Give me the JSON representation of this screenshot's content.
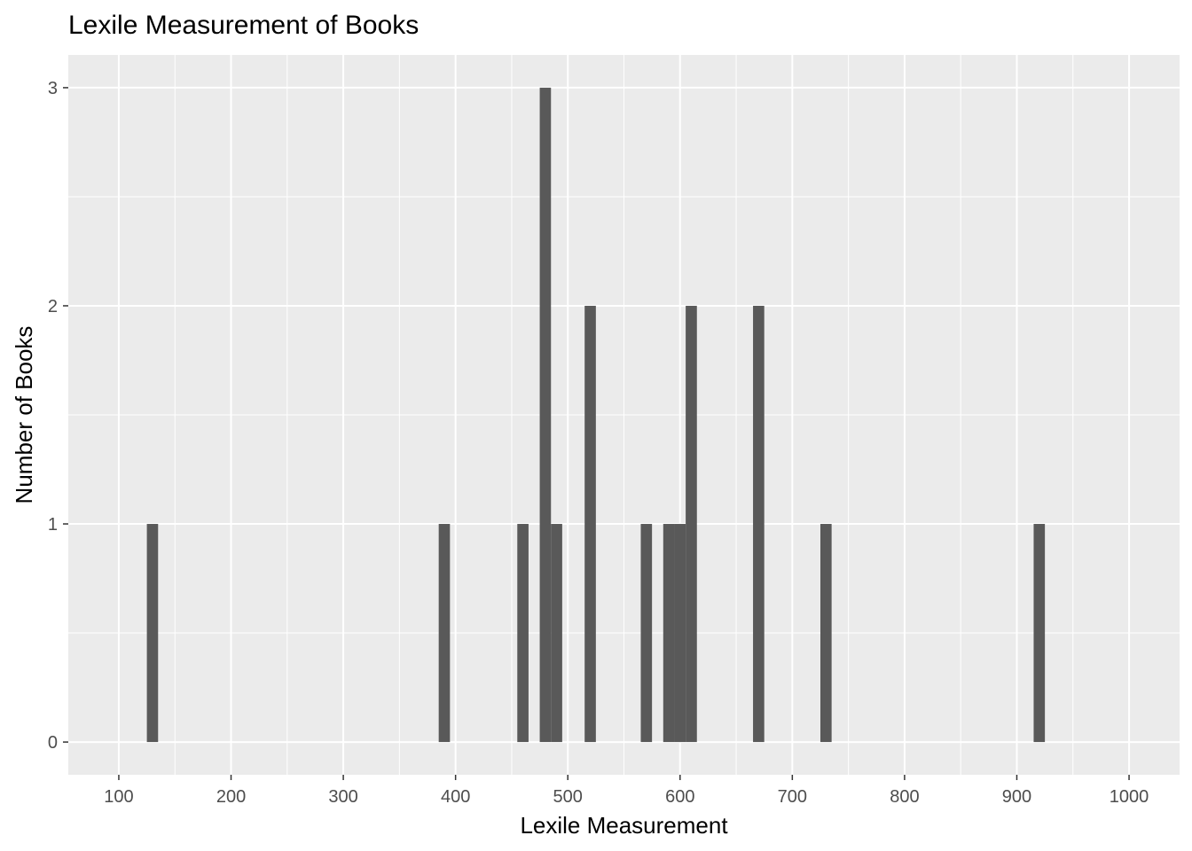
{
  "chart_data": {
    "type": "bar",
    "title": "Lexile Measurement of Books",
    "xlabel": "Lexile Measurement",
    "ylabel": "Number of Books",
    "xlim": [
      55,
      1045
    ],
    "ylim": [
      -0.15,
      3.15
    ],
    "x_ticks": [
      100,
      200,
      300,
      400,
      500,
      600,
      700,
      800,
      900,
      1000
    ],
    "y_ticks": [
      0,
      1,
      2,
      3
    ],
    "grid": true,
    "bar_width": 10,
    "points": [
      {
        "x": 130,
        "y": 1
      },
      {
        "x": 390,
        "y": 1
      },
      {
        "x": 460,
        "y": 1
      },
      {
        "x": 480,
        "y": 3
      },
      {
        "x": 490,
        "y": 1
      },
      {
        "x": 520,
        "y": 2
      },
      {
        "x": 570,
        "y": 1
      },
      {
        "x": 590,
        "y": 1
      },
      {
        "x": 600,
        "y": 1
      },
      {
        "x": 610,
        "y": 2
      },
      {
        "x": 670,
        "y": 2
      },
      {
        "x": 730,
        "y": 1
      },
      {
        "x": 920,
        "y": 1
      }
    ],
    "colors": {
      "panel": "#ebebeb",
      "grid": "#ffffff",
      "bar": "#595959",
      "tick_text": "#4d4d4d",
      "tick_mark": "#333333"
    }
  }
}
